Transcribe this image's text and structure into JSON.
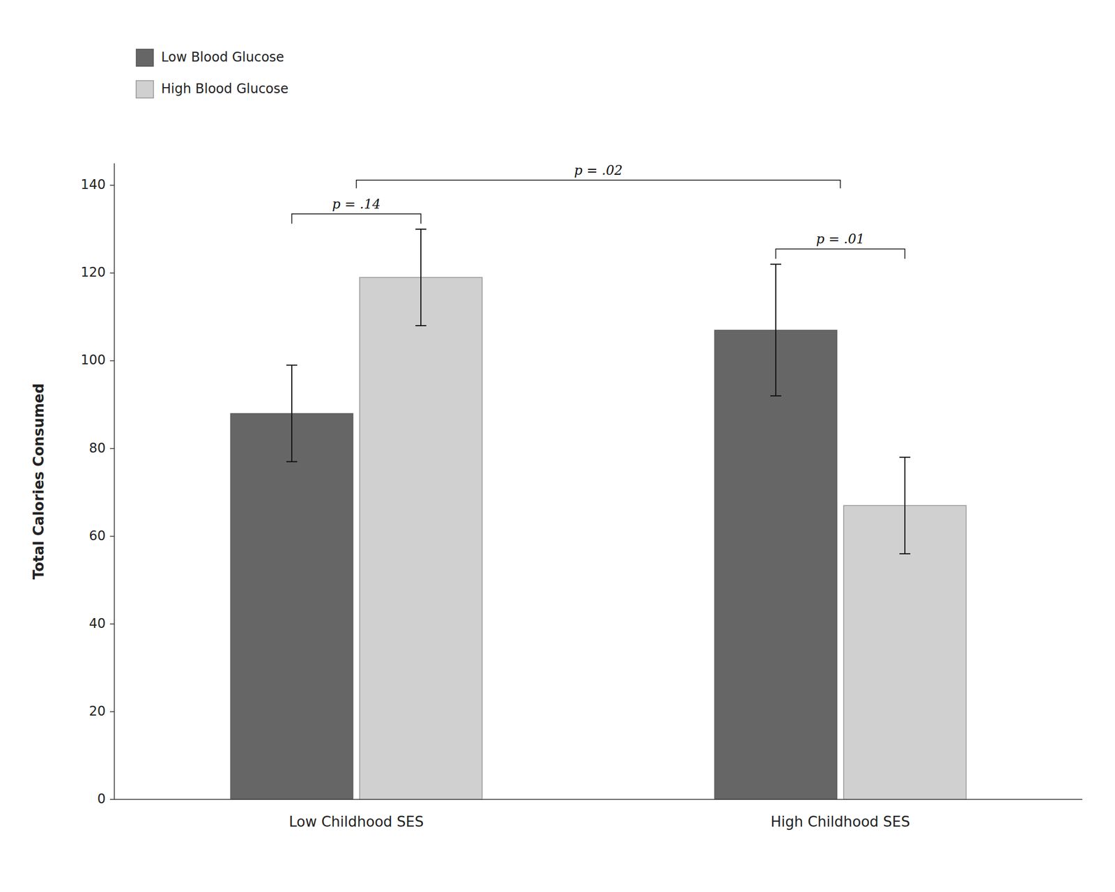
{
  "chart_data": {
    "type": "bar",
    "categories": [
      "Low Childhood SES",
      "High Childhood SES"
    ],
    "series": [
      {
        "name": "Low Blood Glucose",
        "color": "#666666",
        "values": [
          88,
          107
        ],
        "errors": [
          11,
          15
        ]
      },
      {
        "name": "High Blood Glucose",
        "color": "#d0d0d0",
        "values": [
          119,
          67
        ],
        "errors": [
          11,
          11
        ]
      }
    ],
    "ylabel": "Total Calories Consumed",
    "ylim": [
      0,
      145
    ],
    "yticks": [
      0,
      20,
      40,
      60,
      80,
      100,
      120,
      140
    ],
    "annotations": [
      "p = .14",
      "p = .01",
      "p = .02"
    ],
    "legend": "upper left",
    "grid": false
  }
}
